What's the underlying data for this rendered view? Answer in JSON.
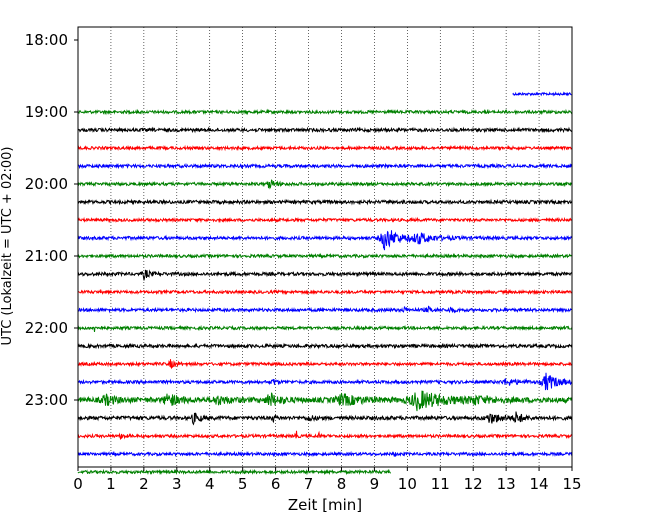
{
  "chart_data": {
    "type": "line",
    "title": "",
    "xlabel": "Zeit  [min]",
    "ylabel": "UTC (Lokalzeit = UTC + 02:00)",
    "xlim": [
      0,
      15
    ],
    "x_ticks": [
      0,
      1,
      2,
      3,
      4,
      5,
      6,
      7,
      8,
      9,
      10,
      11,
      12,
      13,
      14,
      15
    ],
    "x_grid": "dotted-vertical",
    "y_ticks": [
      {
        "label": "18:00",
        "row": 0
      },
      {
        "label": "19:00",
        "row": 4
      },
      {
        "label": "20:00",
        "row": 8
      },
      {
        "label": "21:00",
        "row": 12
      },
      {
        "label": "22:00",
        "row": 16
      },
      {
        "label": "23:00",
        "row": 20
      }
    ],
    "rows_total": 24,
    "row_minutes": 15,
    "color_cycle": [
      "#0000ff",
      "#008000",
      "#000000",
      "#ff0000"
    ],
    "series": [
      {
        "row": 3,
        "start": "18:45",
        "color": "#0000ff",
        "x_start": 13.2,
        "x_end": 15,
        "amp": 1.2
      },
      {
        "row": 4,
        "start": "19:00",
        "color": "#008000",
        "x_start": 0,
        "x_end": 15,
        "amp": 1.4
      },
      {
        "row": 5,
        "start": "19:15",
        "color": "#000000",
        "x_start": 0,
        "x_end": 15,
        "amp": 1.6
      },
      {
        "row": 6,
        "start": "19:30",
        "color": "#ff0000",
        "x_start": 0,
        "x_end": 15,
        "amp": 1.4
      },
      {
        "row": 7,
        "start": "19:45",
        "color": "#0000ff",
        "x_start": 0,
        "x_end": 15,
        "amp": 1.5
      },
      {
        "row": 8,
        "start": "20:00",
        "color": "#008000",
        "x_start": 0,
        "x_end": 15,
        "amp": 1.4,
        "events": [
          {
            "t": 5.8,
            "a": 5,
            "w": 0.35
          }
        ]
      },
      {
        "row": 9,
        "start": "20:15",
        "color": "#000000",
        "x_start": 0,
        "x_end": 15,
        "amp": 1.6
      },
      {
        "row": 10,
        "start": "20:30",
        "color": "#ff0000",
        "x_start": 0,
        "x_end": 15,
        "amp": 1.4
      },
      {
        "row": 11,
        "start": "20:45",
        "color": "#0000ff",
        "x_start": 0,
        "x_end": 15,
        "amp": 1.5,
        "events": [
          {
            "t": 9.3,
            "a": 12,
            "w": 0.8
          },
          {
            "t": 10.3,
            "a": 5,
            "w": 1.0
          }
        ]
      },
      {
        "row": 12,
        "start": "21:00",
        "color": "#008000",
        "x_start": 0,
        "x_end": 15,
        "amp": 1.4
      },
      {
        "row": 13,
        "start": "21:15",
        "color": "#000000",
        "x_start": 0,
        "x_end": 15,
        "amp": 1.6,
        "events": [
          {
            "t": 2.0,
            "a": 5,
            "w": 0.3
          }
        ]
      },
      {
        "row": 14,
        "start": "21:30",
        "color": "#ff0000",
        "x_start": 0,
        "x_end": 15,
        "amp": 1.4
      },
      {
        "row": 15,
        "start": "21:45",
        "color": "#0000ff",
        "x_start": 0,
        "x_end": 15,
        "amp": 1.5,
        "events": [
          {
            "t": 9.9,
            "a": 3,
            "w": 0.2
          },
          {
            "t": 10.6,
            "a": 3,
            "w": 0.3
          },
          {
            "t": 11.3,
            "a": 3,
            "w": 0.2
          }
        ]
      },
      {
        "row": 16,
        "start": "22:00",
        "color": "#008000",
        "x_start": 0,
        "x_end": 15,
        "amp": 1.4,
        "events": [
          {
            "t": 0.5,
            "a": 3,
            "w": 0.2
          }
        ]
      },
      {
        "row": 17,
        "start": "22:15",
        "color": "#000000",
        "x_start": 0,
        "x_end": 15,
        "amp": 1.6
      },
      {
        "row": 18,
        "start": "22:30",
        "color": "#ff0000",
        "x_start": 0,
        "x_end": 15,
        "amp": 1.4,
        "events": [
          {
            "t": 2.8,
            "a": 4,
            "w": 0.3
          }
        ]
      },
      {
        "row": 19,
        "start": "22:45",
        "color": "#0000ff",
        "x_start": 0,
        "x_end": 15,
        "amp": 1.5,
        "events": [
          {
            "t": 5.9,
            "a": 4,
            "w": 0.2
          },
          {
            "t": 14.2,
            "a": 9,
            "w": 0.7
          },
          {
            "t": 13.0,
            "a": 3,
            "w": 0.8
          }
        ]
      },
      {
        "row": 20,
        "start": "23:00",
        "color": "#008000",
        "x_start": 0,
        "x_end": 15,
        "amp": 2.5,
        "events": [
          {
            "t": 0.8,
            "a": 5,
            "w": 0.6
          },
          {
            "t": 2.7,
            "a": 7,
            "w": 0.6
          },
          {
            "t": 5.8,
            "a": 7,
            "w": 0.6
          },
          {
            "t": 8.0,
            "a": 5,
            "w": 1.2
          },
          {
            "t": 10.3,
            "a": 9,
            "w": 1.6
          },
          {
            "t": 4.2,
            "a": 4,
            "w": 0.8
          },
          {
            "t": 12.0,
            "a": 3,
            "w": 1.0
          }
        ]
      },
      {
        "row": 21,
        "start": "23:15",
        "color": "#000000",
        "x_start": 0,
        "x_end": 15,
        "amp": 1.8,
        "events": [
          {
            "t": 3.5,
            "a": 5,
            "w": 0.4
          },
          {
            "t": 5.9,
            "a": 4,
            "w": 0.15
          },
          {
            "t": 12.5,
            "a": 5,
            "w": 0.8
          },
          {
            "t": 13.3,
            "a": 5,
            "w": 0.4
          },
          {
            "t": 7.0,
            "a": 3,
            "w": 0.3
          }
        ]
      },
      {
        "row": 22,
        "start": "23:30",
        "color": "#ff0000",
        "x_start": 0,
        "x_end": 15,
        "amp": 1.4,
        "events": [
          {
            "t": 1.3,
            "a": 3,
            "w": 0.2
          },
          {
            "t": 6.6,
            "a": 14,
            "w": 0.06
          },
          {
            "t": 7.3,
            "a": 9,
            "w": 0.05
          }
        ]
      },
      {
        "row": 23,
        "start": "23:45",
        "color": "#0000ff",
        "x_start": 0,
        "x_end": 15,
        "amp": 1.4,
        "events": [
          {
            "t": 9.6,
            "a": 3,
            "w": 0.1
          }
        ]
      },
      {
        "row": 24,
        "start": "00:00",
        "color": "#008000",
        "x_start": 0,
        "x_end": 9.5,
        "amp": 1.4
      }
    ]
  }
}
